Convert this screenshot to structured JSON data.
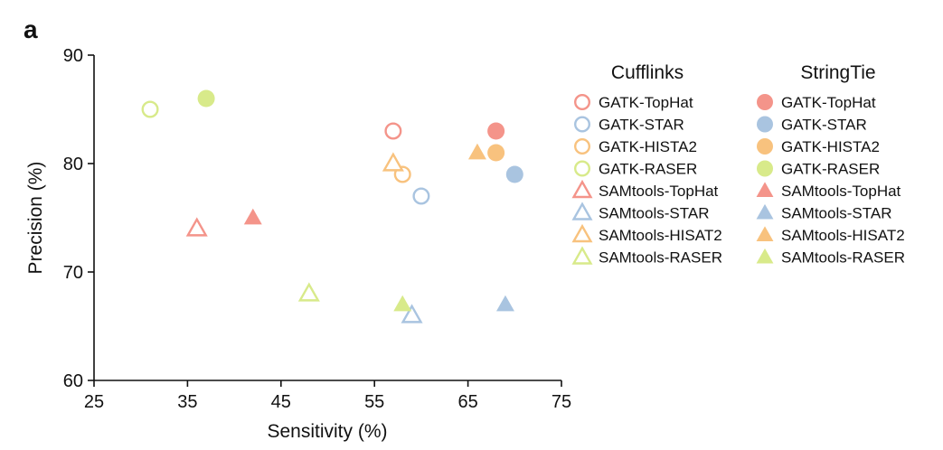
{
  "panel_label": "a",
  "chart_data": {
    "type": "scatter",
    "xlabel": "Sensitivity (%)",
    "ylabel": "Precision (%)",
    "xlim": [
      25,
      75
    ],
    "ylim": [
      60,
      90
    ],
    "xticks": [
      "25",
      "35",
      "45",
      "55",
      "65",
      "75"
    ],
    "yticks": [
      "60",
      "70",
      "80",
      "90"
    ],
    "legend_placement": "right",
    "legend_columns": [
      {
        "title": "Cufflinks",
        "fill": "hollow",
        "entries": [
          "GATK-TopHat",
          "GATK-STAR",
          "GATK-HISTA2",
          "GATK-RASER",
          "SAMtools-TopHat",
          "SAMtools-STAR",
          "SAMtools-HISAT2",
          "SAMtools-RASER"
        ]
      },
      {
        "title": "StringTie",
        "fill": "filled",
        "entries": [
          "GATK-TopHat",
          "GATK-STAR",
          "GATK-HISTA2",
          "GATK-RASER",
          "SAMtools-TopHat",
          "SAMtools-STAR",
          "SAMtools-HISAT2",
          "SAMtools-RASER"
        ]
      }
    ],
    "colors": {
      "TopHat": "#f4948a",
      "STAR": "#a9c4e0",
      "HISAT2": "#f8c27e",
      "RASER": "#d8ea8a"
    },
    "series": [
      {
        "caller": "GATK",
        "aligner": "TopHat",
        "assembler": "Cufflinks",
        "marker": "circle",
        "fill": "hollow",
        "x": 57,
        "y": 83
      },
      {
        "caller": "GATK",
        "aligner": "STAR",
        "assembler": "Cufflinks",
        "marker": "circle",
        "fill": "hollow",
        "x": 60,
        "y": 77
      },
      {
        "caller": "GATK",
        "aligner": "HISAT2",
        "assembler": "Cufflinks",
        "marker": "circle",
        "fill": "hollow",
        "x": 58,
        "y": 79
      },
      {
        "caller": "GATK",
        "aligner": "RASER",
        "assembler": "Cufflinks",
        "marker": "circle",
        "fill": "hollow",
        "x": 31,
        "y": 85
      },
      {
        "caller": "SAMtools",
        "aligner": "TopHat",
        "assembler": "Cufflinks",
        "marker": "triangle",
        "fill": "hollow",
        "x": 36,
        "y": 74
      },
      {
        "caller": "SAMtools",
        "aligner": "STAR",
        "assembler": "Cufflinks",
        "marker": "triangle",
        "fill": "hollow",
        "x": 59,
        "y": 66
      },
      {
        "caller": "SAMtools",
        "aligner": "HISAT2",
        "assembler": "Cufflinks",
        "marker": "triangle",
        "fill": "hollow",
        "x": 57,
        "y": 80
      },
      {
        "caller": "SAMtools",
        "aligner": "RASER",
        "assembler": "Cufflinks",
        "marker": "triangle",
        "fill": "hollow",
        "x": 48,
        "y": 68
      },
      {
        "caller": "GATK",
        "aligner": "TopHat",
        "assembler": "StringTie",
        "marker": "circle",
        "fill": "filled",
        "x": 68,
        "y": 83
      },
      {
        "caller": "GATK",
        "aligner": "STAR",
        "assembler": "StringTie",
        "marker": "circle",
        "fill": "filled",
        "x": 70,
        "y": 79
      },
      {
        "caller": "GATK",
        "aligner": "HISAT2",
        "assembler": "StringTie",
        "marker": "circle",
        "fill": "filled",
        "x": 68,
        "y": 81
      },
      {
        "caller": "GATK",
        "aligner": "RASER",
        "assembler": "StringTie",
        "marker": "circle",
        "fill": "filled",
        "x": 37,
        "y": 86
      },
      {
        "caller": "SAMtools",
        "aligner": "TopHat",
        "assembler": "StringTie",
        "marker": "triangle",
        "fill": "filled",
        "x": 42,
        "y": 75
      },
      {
        "caller": "SAMtools",
        "aligner": "STAR",
        "assembler": "StringTie",
        "marker": "triangle",
        "fill": "filled",
        "x": 69,
        "y": 67
      },
      {
        "caller": "SAMtools",
        "aligner": "HISAT2",
        "assembler": "StringTie",
        "marker": "triangle",
        "fill": "filled",
        "x": 66,
        "y": 81
      },
      {
        "caller": "SAMtools",
        "aligner": "RASER",
        "assembler": "StringTie",
        "marker": "triangle",
        "fill": "filled",
        "x": 58,
        "y": 67
      }
    ]
  }
}
